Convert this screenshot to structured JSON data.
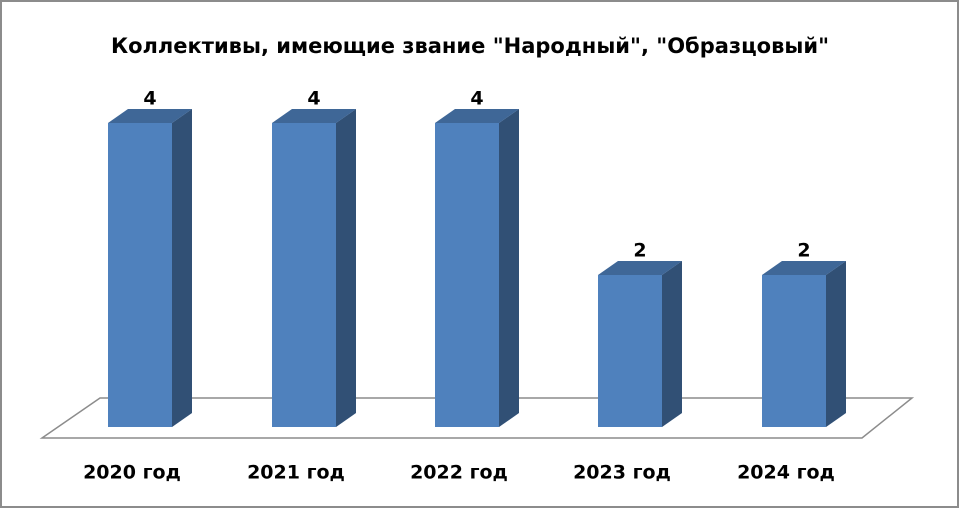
{
  "chart_data": {
    "type": "bar3d",
    "title": "Коллективы, имеющие звание \"Народный\", \"Образцовый\"",
    "categories": [
      "2020 год",
      "2021 год",
      "2022 год",
      "2023 год",
      "2024 год"
    ],
    "values": [
      4,
      4,
      4,
      2,
      2
    ],
    "color": "#4f81bd"
  }
}
